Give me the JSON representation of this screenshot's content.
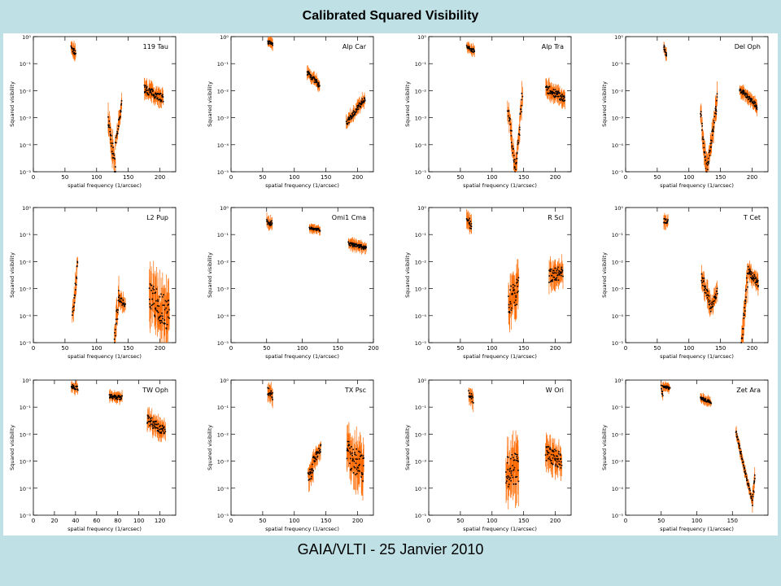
{
  "page": {
    "title": "Calibrated Squared Visibility",
    "footer": "GAIA/VLTI - 25 Janvier 2010"
  },
  "colors": {
    "background": "#bfe0e5",
    "data": "#000000",
    "errors": "#ff6a00"
  },
  "axis_common": {
    "xlabel": "spatial frequency (1/arcsec)",
    "ylabel": "Squared visibility",
    "yscale": "log",
    "ylim": [
      1e-05,
      1
    ],
    "ytick_labels": [
      "10⁰",
      "10⁻¹",
      "10⁻²",
      "10⁻³",
      "10⁻⁴",
      "10⁻⁵"
    ]
  },
  "chart_data": [
    {
      "type": "scatter",
      "title": "119 Tau",
      "xlim": [
        0,
        225
      ],
      "xticks": [
        0,
        50,
        100,
        150,
        200
      ],
      "groups": [
        {
          "x": [
            60,
            67
          ],
          "y": [
            0.35,
            0.25
          ],
          "spread": 0.25
        },
        {
          "x": [
            118,
            130
          ],
          "y": [
            0.001,
            1e-05
          ],
          "spread": 0.6
        },
        {
          "x": [
            130,
            140
          ],
          "y": [
            0.0001,
            0.0035
          ],
          "spread": 0.3
        },
        {
          "x": [
            175,
            205
          ],
          "y": [
            0.012,
            0.005
          ],
          "spread": 0.3
        }
      ]
    },
    {
      "type": "scatter",
      "title": "Alp Car",
      "xlim": [
        0,
        225
      ],
      "xticks": [
        0,
        50,
        100,
        150,
        200
      ],
      "groups": [
        {
          "x": [
            58,
            66
          ],
          "y": [
            0.65,
            0.5
          ],
          "spread": 0.15
        },
        {
          "x": [
            120,
            140
          ],
          "y": [
            0.05,
            0.015
          ],
          "spread": 0.2
        },
        {
          "x": [
            182,
            212
          ],
          "y": [
            0.0006,
            0.0055
          ],
          "spread": 0.2
        }
      ]
    },
    {
      "type": "scatter",
      "title": "Alp Tra",
      "xlim": [
        0,
        225
      ],
      "xticks": [
        0,
        50,
        100,
        150,
        200
      ],
      "groups": [
        {
          "x": [
            60,
            72
          ],
          "y": [
            0.4,
            0.3
          ],
          "spread": 0.15
        },
        {
          "x": [
            125,
            137
          ],
          "y": [
            0.003,
            1e-05
          ],
          "spread": 0.5
        },
        {
          "x": [
            137,
            148
          ],
          "y": [
            1e-05,
            0.006
          ],
          "spread": 0.5
        },
        {
          "x": [
            185,
            215
          ],
          "y": [
            0.012,
            0.005
          ],
          "spread": 0.3
        }
      ]
    },
    {
      "type": "scatter",
      "title": "Del Oph",
      "xlim": [
        0,
        225
      ],
      "xticks": [
        0,
        50,
        100,
        150,
        200
      ],
      "groups": [
        {
          "x": [
            60,
            65
          ],
          "y": [
            0.45,
            0.2
          ],
          "spread": 0.15
        },
        {
          "x": [
            118,
            128
          ],
          "y": [
            0.002,
            1e-05
          ],
          "spread": 0.5
        },
        {
          "x": [
            128,
            145
          ],
          "y": [
            1e-05,
            0.0045
          ],
          "spread": 0.5
        },
        {
          "x": [
            180,
            208
          ],
          "y": [
            0.012,
            0.0025
          ],
          "spread": 0.2
        }
      ]
    },
    {
      "type": "scatter",
      "title": "L2 Pup",
      "xlim": [
        0,
        225
      ],
      "xticks": [
        0,
        50,
        100,
        150,
        200
      ],
      "groups": [
        {
          "x": [
            62,
            70
          ],
          "y": [
            0.0001,
            0.01
          ],
          "spread": 0.4
        },
        {
          "x": [
            128,
            135
          ],
          "y": [
            1e-05,
            0.0005
          ],
          "spread": 0.6
        },
        {
          "x": [
            135,
            145
          ],
          "y": [
            0.0005,
            0.0002
          ],
          "spread": 0.3
        },
        {
          "x": [
            183,
            215
          ],
          "y": [
            0.0005,
            0.0001
          ],
          "spread": 1.2
        }
      ]
    },
    {
      "type": "scatter",
      "title": "Omi1 Cma",
      "xlim": [
        0,
        200
      ],
      "xticks": [
        0,
        50,
        100,
        150,
        200
      ],
      "groups": [
        {
          "x": [
            50,
            58
          ],
          "y": [
            0.3,
            0.25
          ],
          "spread": 0.2
        },
        {
          "x": [
            110,
            125
          ],
          "y": [
            0.18,
            0.15
          ],
          "spread": 0.1
        },
        {
          "x": [
            165,
            190
          ],
          "y": [
            0.045,
            0.032
          ],
          "spread": 0.15
        }
      ]
    },
    {
      "type": "scatter",
      "title": "R Scl",
      "xlim": [
        0,
        225
      ],
      "xticks": [
        0,
        50,
        100,
        150,
        200
      ],
      "groups": [
        {
          "x": [
            60,
            68
          ],
          "y": [
            0.4,
            0.2
          ],
          "spread": 0.35
        },
        {
          "x": [
            126,
            142
          ],
          "y": [
            0.0003,
            0.001
          ],
          "spread": 1.0
        },
        {
          "x": [
            190,
            212
          ],
          "y": [
            0.003,
            0.004
          ],
          "spread": 0.5
        }
      ]
    },
    {
      "type": "scatter",
      "title": "T Cet",
      "xlim": [
        0,
        225
      ],
      "xticks": [
        0,
        50,
        100,
        150,
        200
      ],
      "groups": [
        {
          "x": [
            60,
            67
          ],
          "y": [
            0.35,
            0.28
          ],
          "spread": 0.2
        },
        {
          "x": [
            120,
            135
          ],
          "y": [
            0.003,
            0.0002
          ],
          "spread": 0.4
        },
        {
          "x": [
            135,
            145
          ],
          "y": [
            0.0002,
            0.0008
          ],
          "spread": 0.3
        },
        {
          "x": [
            183,
            193
          ],
          "y": [
            1e-05,
            0.003
          ],
          "spread": 0.7
        },
        {
          "x": [
            193,
            210
          ],
          "y": [
            0.005,
            0.0015
          ],
          "spread": 0.3
        }
      ]
    },
    {
      "type": "scatter",
      "title": "TW Oph",
      "xlim": [
        0,
        135
      ],
      "xticks": [
        0,
        20,
        40,
        60,
        80,
        100,
        120
      ],
      "groups": [
        {
          "x": [
            36,
            42
          ],
          "y": [
            0.6,
            0.5
          ],
          "spread": 0.15
        },
        {
          "x": [
            72,
            84
          ],
          "y": [
            0.25,
            0.22
          ],
          "spread": 0.15
        },
        {
          "x": [
            108,
            125
          ],
          "y": [
            0.035,
            0.012
          ],
          "spread": 0.35
        }
      ]
    },
    {
      "type": "scatter",
      "title": "TX Psc",
      "xlim": [
        0,
        225
      ],
      "xticks": [
        0,
        50,
        100,
        150,
        200
      ],
      "groups": [
        {
          "x": [
            58,
            66
          ],
          "y": [
            0.4,
            0.25
          ],
          "spread": 0.3
        },
        {
          "x": [
            122,
            130
          ],
          "y": [
            0.0003,
            0.0005
          ],
          "spread": 0.5
        },
        {
          "x": [
            130,
            142
          ],
          "y": [
            0.001,
            0.003
          ],
          "spread": 0.3
        },
        {
          "x": [
            183,
            210
          ],
          "y": [
            0.002,
            0.0005
          ],
          "spread": 1.0
        }
      ]
    },
    {
      "type": "scatter",
      "title": "W Ori",
      "xlim": [
        0,
        225
      ],
      "xticks": [
        0,
        50,
        100,
        150,
        200
      ],
      "groups": [
        {
          "x": [
            63,
            70
          ],
          "y": [
            0.35,
            0.2
          ],
          "spread": 0.3
        },
        {
          "x": [
            122,
            142
          ],
          "y": [
            0.0004,
            0.0006
          ],
          "spread": 1.2
        },
        {
          "x": [
            185,
            210
          ],
          "y": [
            0.002,
            0.001
          ],
          "spread": 0.6
        }
      ]
    },
    {
      "type": "scatter",
      "title": "Zet Ara",
      "xlim": [
        0,
        200
      ],
      "xticks": [
        0,
        50,
        100,
        150
      ],
      "groups": [
        {
          "x": [
            50,
            52
          ],
          "y": [
            0.6,
            0.25
          ],
          "spread": 0.1
        },
        {
          "x": [
            52,
            62
          ],
          "y": [
            0.6,
            0.5
          ],
          "spread": 0.1
        },
        {
          "x": [
            105,
            120
          ],
          "y": [
            0.22,
            0.15
          ],
          "spread": 0.1
        },
        {
          "x": [
            155,
            178
          ],
          "y": [
            0.012,
            3e-05
          ],
          "spread": 0.15
        },
        {
          "x": [
            178,
            182
          ],
          "y": [
            3e-05,
            0.0003
          ],
          "spread": 0.3
        }
      ]
    }
  ]
}
